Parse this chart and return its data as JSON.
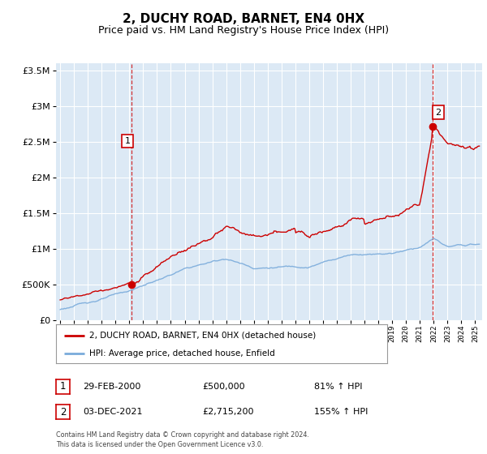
{
  "title": "2, DUCHY ROAD, BARNET, EN4 0HX",
  "subtitle": "Price paid vs. HM Land Registry's House Price Index (HPI)",
  "legend_label_red": "2, DUCHY ROAD, BARNET, EN4 0HX (detached house)",
  "legend_label_blue": "HPI: Average price, detached house, Enfield",
  "annotation1_date": "29-FEB-2000",
  "annotation1_price": "£500,000",
  "annotation1_hpi": "81% ↑ HPI",
  "annotation2_date": "03-DEC-2021",
  "annotation2_price": "£2,715,200",
  "annotation2_hpi": "155% ↑ HPI",
  "footer": "Contains HM Land Registry data © Crown copyright and database right 2024.\nThis data is licensed under the Open Government Licence v3.0.",
  "sale1_year": 2000.16,
  "sale1_price": 500000,
  "sale2_year": 2021.92,
  "sale2_price": 2715200,
  "ylim_max": 3600000,
  "xlim_min": 1994.7,
  "xlim_max": 2025.5,
  "background_color": "#ffffff",
  "chart_bg_color": "#dce9f5",
  "grid_color": "#ffffff",
  "red_color": "#cc0000",
  "blue_color": "#7aabdb",
  "title_fontsize": 11,
  "subtitle_fontsize": 9
}
